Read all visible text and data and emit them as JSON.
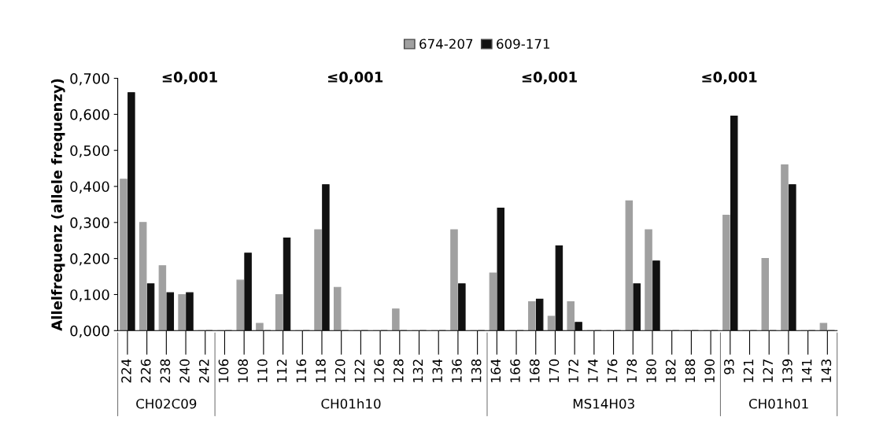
{
  "chart_data": {
    "type": "bar",
    "ylabel": "Allelfrequenz (allele frequenzy)",
    "categories": [
      "224",
      "226",
      "238",
      "240",
      "242",
      "106",
      "108",
      "110",
      "112",
      "116",
      "118",
      "120",
      "122",
      "126",
      "128",
      "132",
      "134",
      "136",
      "138",
      "164",
      "166",
      "168",
      "170",
      "172",
      "174",
      "176",
      "178",
      "180",
      "182",
      "188",
      "190",
      "93",
      "121",
      "127",
      "139",
      "141",
      "143"
    ],
    "series": [
      {
        "name": "674-207",
        "color": "#a0a0a0",
        "values": [
          0.42,
          0.3,
          0.18,
          0.1,
          0,
          0,
          0.14,
          0.02,
          0.1,
          0,
          0.28,
          0.12,
          0,
          0,
          0.06,
          0,
          0,
          0.28,
          0,
          0.16,
          0,
          0.08,
          0.04,
          0.08,
          0,
          0,
          0.36,
          0.28,
          0,
          0,
          0,
          0.32,
          0,
          0.2,
          0.46,
          0,
          0.02
        ]
      },
      {
        "name": "609-171",
        "color": "#111111",
        "values": [
          0.66,
          0.13,
          0.105,
          0.105,
          0,
          0,
          0.215,
          0,
          0.257,
          0,
          0.405,
          0,
          0,
          0,
          0,
          0,
          0,
          0.13,
          0,
          0.34,
          0,
          0.087,
          0.235,
          0.023,
          0,
          0,
          0.13,
          0.193,
          0,
          0,
          0,
          0.595,
          0,
          0,
          0.405,
          0,
          0
        ]
      }
    ],
    "ylim": [
      0,
      0.7
    ],
    "yticks": [
      {
        "value": 0,
        "label": "0,000"
      },
      {
        "value": 0.1,
        "label": "0,100"
      },
      {
        "value": 0.2,
        "label": "0,200"
      },
      {
        "value": 0.3,
        "label": "0,300"
      },
      {
        "value": 0.4,
        "label": "0,400"
      },
      {
        "value": 0.5,
        "label": "0,500"
      },
      {
        "value": 0.6,
        "label": "0,600"
      },
      {
        "value": 0.7,
        "label": "0,700"
      }
    ],
    "annotations": [
      "≤0,001",
      "≤0,001",
      "≤0,001",
      "≤0,001",
      "CH02C09",
      "CH01h10",
      "MS14H03",
      "CH01h01"
    ],
    "grid": false,
    "legend": "top"
  }
}
